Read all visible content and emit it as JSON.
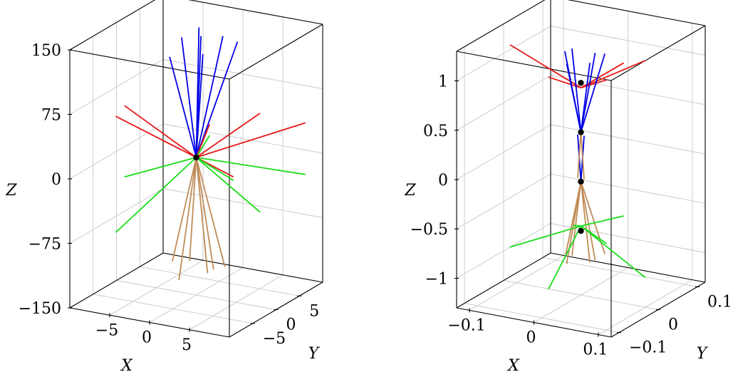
{
  "chart_data": [
    {
      "type": "3d-line",
      "xlabel": "X",
      "ylabel": "Y",
      "zlabel": "Z",
      "xlim": [
        -10,
        10
      ],
      "ylim": [
        -10,
        10
      ],
      "zlim": [
        -150,
        150
      ],
      "x_ticks": [
        "−5",
        "0",
        "5"
      ],
      "y_ticks": [
        "−5",
        "0",
        "5"
      ],
      "z_ticks": [
        "150",
        "75",
        "0",
        "−75",
        "−150"
      ],
      "grid": true,
      "colors": {
        "blue": "#0000e6",
        "red": "#e61919",
        "green": "#19dd19",
        "brown": "#c08c58",
        "point": "#000000"
      },
      "points": [
        {
          "x": 0,
          "y": 0,
          "z": 10
        }
      ],
      "series": [
        {
          "color": "blue",
          "from": [
            0,
            0,
            10
          ],
          "to": [
            [
              -2,
              4,
              145
            ],
            [
              1,
              4,
              140
            ],
            [
              4,
              2,
              145
            ],
            [
              -3,
              2,
              138
            ],
            [
              2,
              -2,
              140
            ],
            [
              -1,
              -4,
              138
            ],
            [
              0,
              1,
              148
            ]
          ]
        },
        {
          "color": "red",
          "from": [
            0,
            0,
            10
          ],
          "to": [
            [
              -9,
              0,
              55
            ],
            [
              8,
              0,
              75
            ],
            [
              9,
              8,
              40
            ],
            [
              -6,
              -7,
              70
            ],
            [
              -3,
              8,
              18
            ],
            [
              7,
              -4,
              12
            ]
          ]
        },
        {
          "color": "green",
          "from": [
            0,
            0,
            10
          ],
          "to": [
            [
              -9,
              0,
              -28
            ],
            [
              8,
              0,
              -40
            ],
            [
              9,
              8,
              -20
            ],
            [
              -6,
              -7,
              -65
            ],
            [
              -3,
              8,
              5
            ],
            [
              7,
              -4,
              8
            ]
          ]
        },
        {
          "color": "brown",
          "from": [
            0,
            0,
            10
          ],
          "to": [
            [
              -2,
              2,
              -120
            ],
            [
              1,
              2,
              -125
            ],
            [
              2,
              -1,
              -118
            ],
            [
              -1,
              -2,
              -128
            ],
            [
              3,
              1,
              -115
            ],
            [
              -3,
              0,
              -116
            ]
          ]
        }
      ]
    },
    {
      "type": "3d-line",
      "xlabel": "X",
      "ylabel": "Y",
      "zlabel": "Z",
      "xlim": [
        -0.12,
        0.12
      ],
      "ylim": [
        -0.12,
        0.12
      ],
      "zlim": [
        -1.3,
        1.3
      ],
      "x_ticks": [
        "−0.1",
        "0",
        "0.1"
      ],
      "y_ticks": [
        "−0.1",
        "0",
        "0.1"
      ],
      "z_ticks": [
        "1",
        "0.5",
        "0",
        "−0.5",
        "−1"
      ],
      "grid": true,
      "colors": {
        "blue": "#0000e6",
        "red": "#e61919",
        "green": "#19dd19",
        "brown": "#c08c58",
        "point": "#000000"
      },
      "points": [
        {
          "x": 0,
          "y": 0,
          "z": 0.85
        },
        {
          "x": 0,
          "y": 0,
          "z": 0.35
        },
        {
          "x": 0,
          "y": 0,
          "z": -0.15
        },
        {
          "x": 0,
          "y": 0,
          "z": -0.65
        }
      ],
      "series": [
        {
          "color": "red",
          "from": [
            0,
            0,
            0.8
          ],
          "to": [
            [
              -0.11,
              0,
              1.1
            ],
            [
              0.1,
              0,
              1.2
            ],
            [
              -0.02,
              -0.05,
              1.0
            ],
            [
              0.03,
              0.06,
              0.95
            ],
            [
              0.04,
              0,
              0.93
            ]
          ]
        },
        {
          "color": "blue",
          "from": [
            0,
            0,
            0.35
          ],
          "to": [
            [
              -0.02,
              0.01,
              1.15
            ],
            [
              0.01,
              0.02,
              1.12
            ],
            [
              0.02,
              -0.01,
              1.1
            ],
            [
              -0.01,
              -0.02,
              1.08
            ],
            [
              0.025,
              0.02,
              1.13
            ],
            [
              -0.025,
              0.0,
              1.14
            ]
          ]
        },
        {
          "color": "blue",
          "from": [
            0,
            0,
            -0.15
          ],
          "to": [
            [
              -0.005,
              0,
              0.32
            ],
            [
              0.005,
              0,
              0.32
            ]
          ]
        },
        {
          "color": "brown",
          "from": [
            0,
            0,
            0.35
          ],
          "to": [
            [
              -0.005,
              0,
              -0.12
            ],
            [
              0.005,
              0,
              -0.12
            ]
          ]
        },
        {
          "color": "brown",
          "from": [
            0,
            0,
            -0.15
          ],
          "to": [
            [
              -0.02,
              0.01,
              -0.95
            ],
            [
              0.01,
              0.02,
              -0.98
            ],
            [
              0.02,
              -0.01,
              -0.92
            ],
            [
              -0.01,
              -0.02,
              -0.95
            ],
            [
              0.025,
              0.02,
              -0.9
            ],
            [
              -0.025,
              0.0,
              -0.96
            ]
          ]
        },
        {
          "color": "green",
          "from": [
            0,
            0,
            -0.6
          ],
          "to": [
            [
              -0.11,
              0,
              -0.95
            ],
            [
              0.1,
              0,
              -1.0
            ],
            [
              -0.02,
              -0.05,
              -1.15
            ],
            [
              0.03,
              0.06,
              -0.6
            ],
            [
              0.04,
              0,
              -0.73
            ],
            [
              -0.03,
              0.03,
              -0.7
            ]
          ]
        }
      ]
    }
  ]
}
